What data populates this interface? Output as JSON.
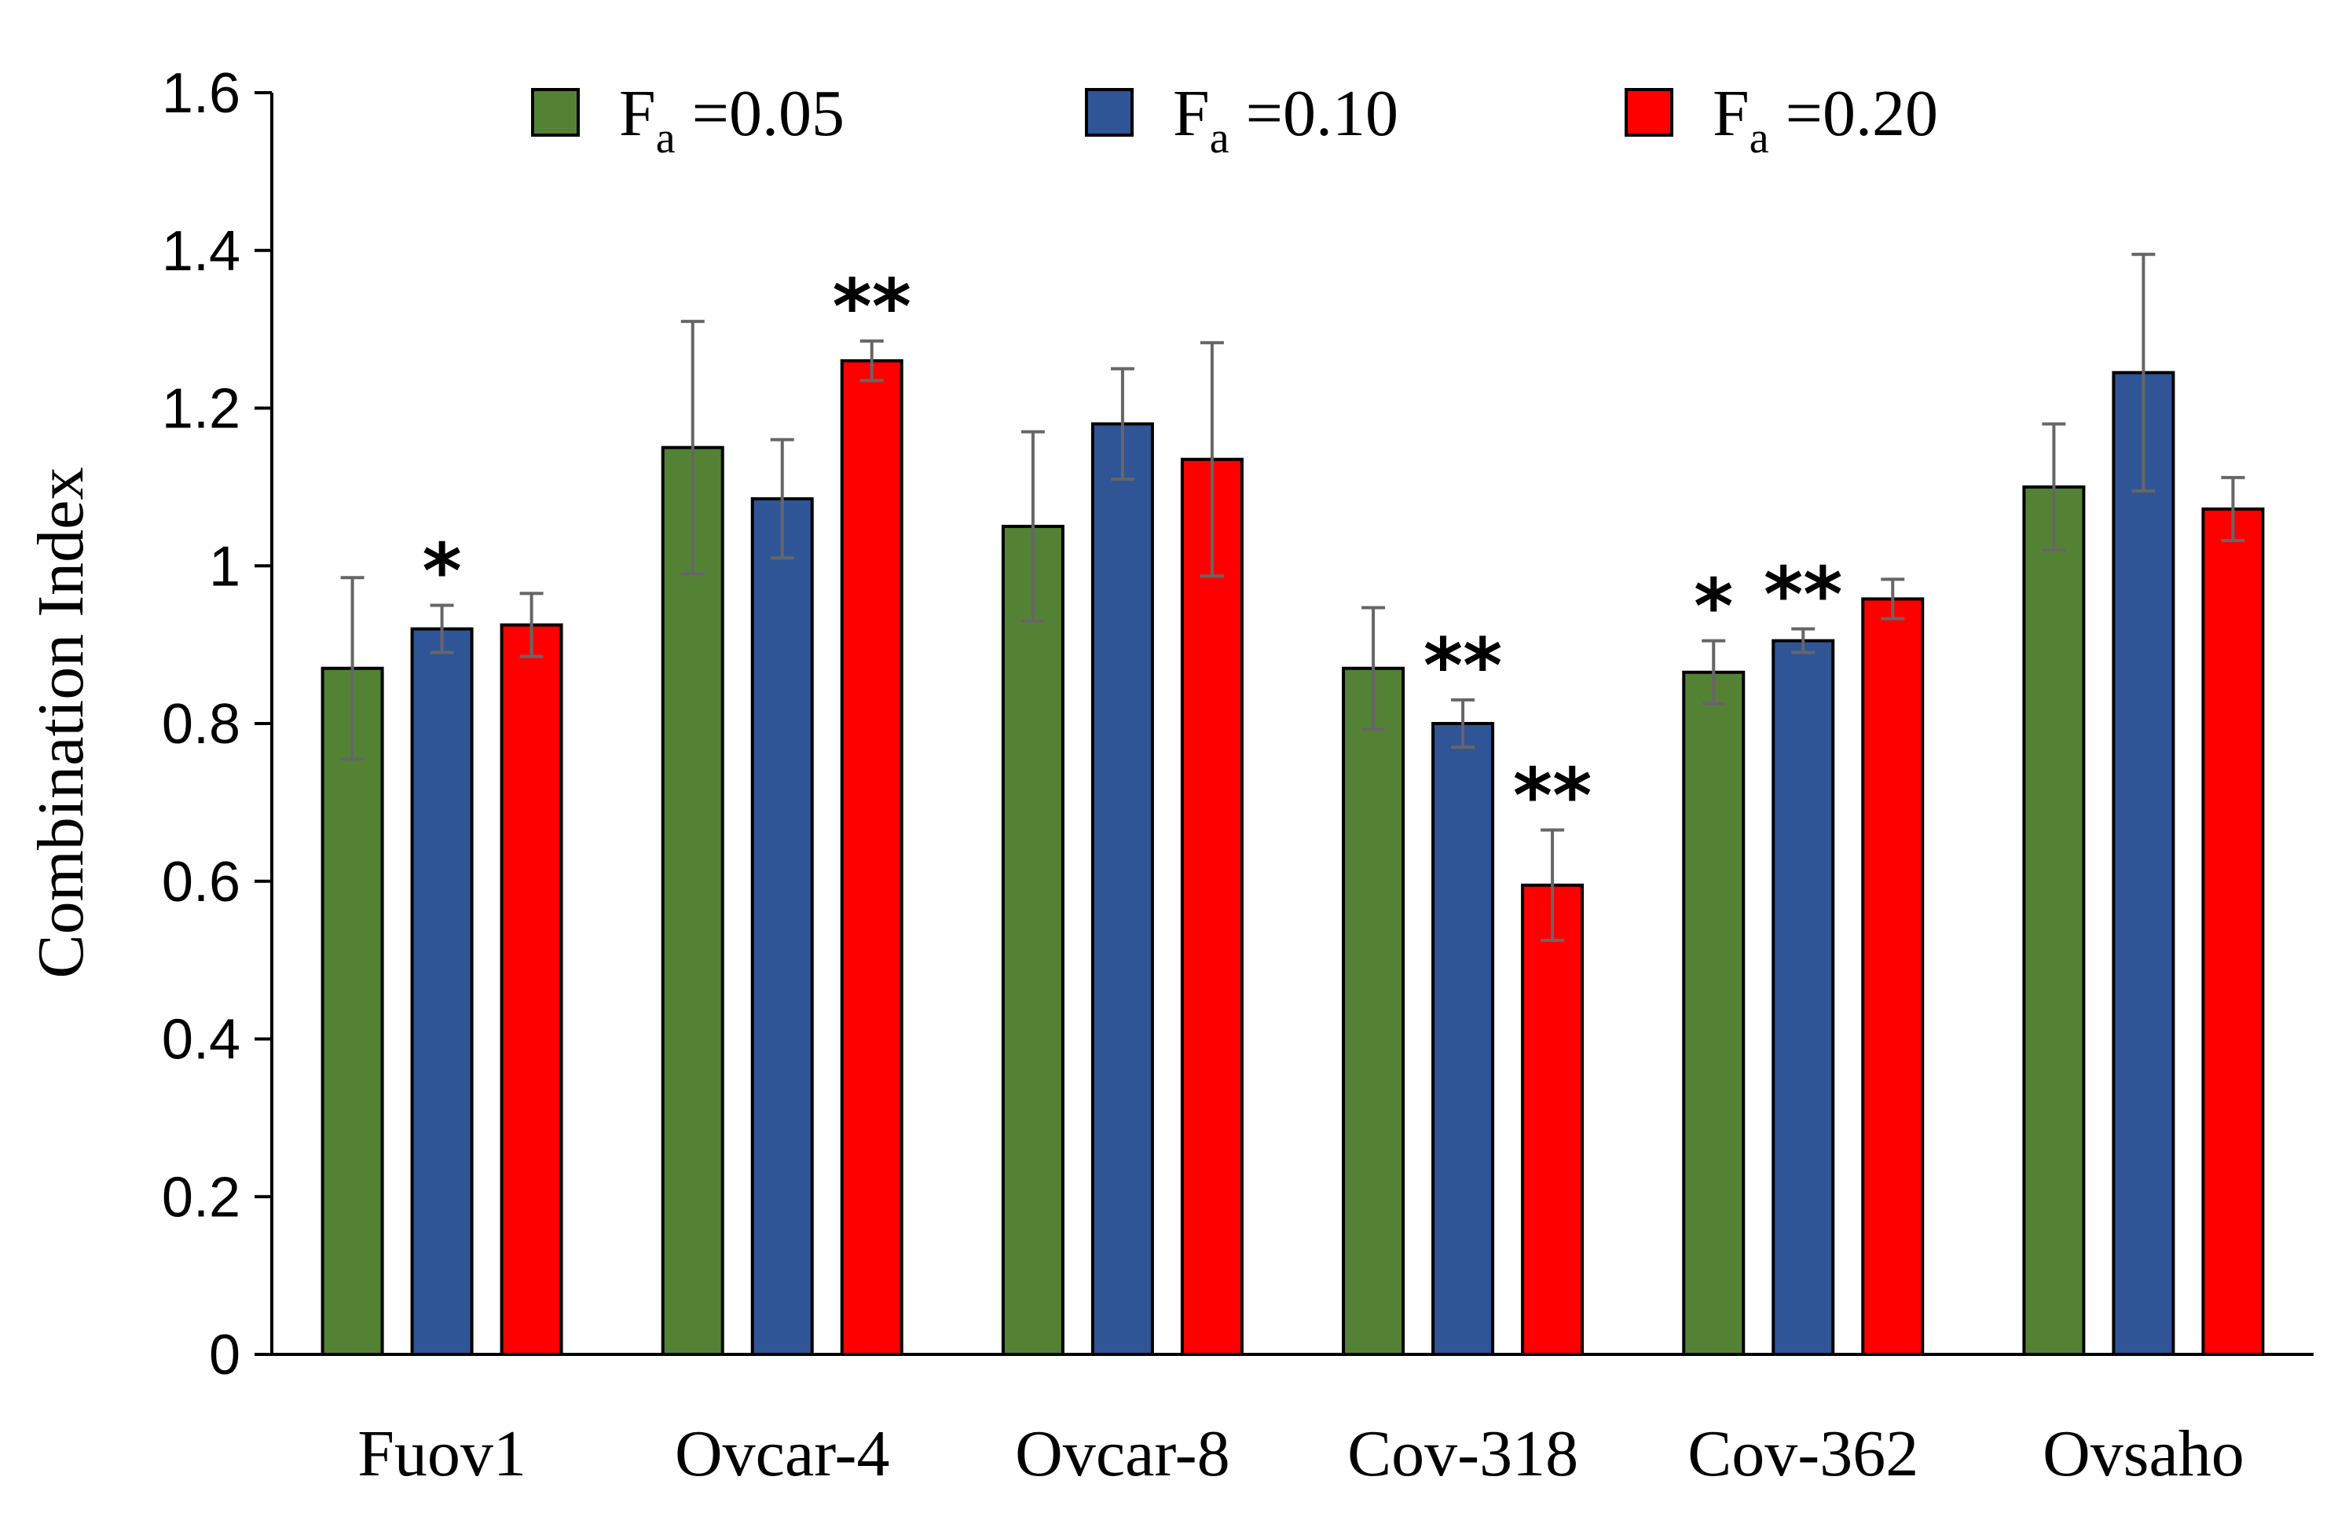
{
  "chart_data": {
    "type": "bar",
    "ylabel": "Combination Index",
    "ylim": [
      0,
      1.6
    ],
    "yticks": [
      0,
      0.2,
      0.4,
      0.6,
      0.8,
      1,
      1.2,
      1.4,
      1.6
    ],
    "ytick_labels": [
      "0",
      "0.2",
      "0.4",
      "0.6",
      "0.8",
      "1",
      "1.2",
      "1.4",
      "1.6"
    ],
    "legend_placement": "top",
    "grid": false,
    "categories": [
      "Fuov1",
      "Ovcar-4",
      "Ovcar-8",
      "Cov-318",
      "Cov-362",
      "Ovsaho"
    ],
    "series": [
      {
        "legend_main": "F",
        "legend_sub": "a",
        "legend_tail": " =0.05",
        "color": "#548235",
        "values": [
          0.87,
          1.15,
          1.05,
          0.87,
          0.865,
          1.1
        ],
        "errors": [
          0.115,
          0.16,
          0.12,
          0.077,
          0.04,
          0.08
        ],
        "annotations": [
          "",
          "",
          "",
          "",
          "*",
          ""
        ]
      },
      {
        "legend_main": "F",
        "legend_sub": "a",
        "legend_tail": " =0.10",
        "color": "#2f5597",
        "values": [
          0.92,
          1.085,
          1.18,
          0.8,
          0.905,
          1.245
        ],
        "errors": [
          0.03,
          0.075,
          0.07,
          0.03,
          0.015,
          0.15
        ],
        "annotations": [
          "*",
          "",
          "",
          "**",
          "**",
          ""
        ]
      },
      {
        "legend_main": "F",
        "legend_sub": "a",
        "legend_tail": " =0.20",
        "color": "#ff0000",
        "values": [
          0.925,
          1.26,
          1.135,
          0.595,
          0.958,
          1.072
        ],
        "errors": [
          0.04,
          0.025,
          0.148,
          0.07,
          0.025,
          0.04
        ],
        "annotations": [
          "",
          "**",
          "",
          "**",
          "",
          ""
        ]
      }
    ]
  }
}
